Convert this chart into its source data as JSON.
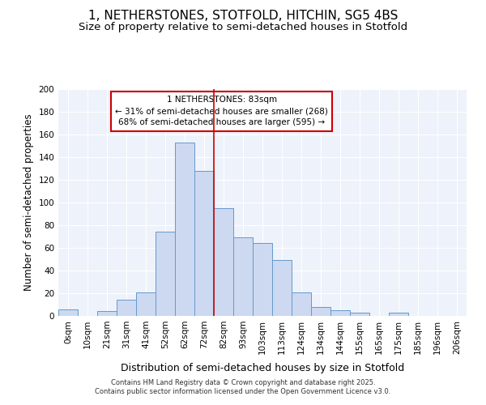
{
  "title1": "1, NETHERSTONES, STOTFOLD, HITCHIN, SG5 4BS",
  "title2": "Size of property relative to semi-detached houses in Stotfold",
  "xlabel": "Distribution of semi-detached houses by size in Stotfold",
  "ylabel": "Number of semi-detached properties",
  "categories": [
    "0sqm",
    "10sqm",
    "21sqm",
    "31sqm",
    "41sqm",
    "52sqm",
    "62sqm",
    "72sqm",
    "82sqm",
    "93sqm",
    "103sqm",
    "113sqm",
    "124sqm",
    "134sqm",
    "144sqm",
    "155sqm",
    "165sqm",
    "175sqm",
    "185sqm",
    "196sqm",
    "206sqm"
  ],
  "values": [
    6,
    0,
    4,
    14,
    21,
    74,
    153,
    128,
    95,
    69,
    64,
    49,
    21,
    8,
    5,
    3,
    0,
    3,
    0,
    0,
    0
  ],
  "bar_color": "#ccd9f0",
  "bar_edge_color": "#6699cc",
  "vline_x_index": 7.5,
  "vline_color": "#cc0000",
  "annotation_text": "1 NETHERSTONES: 83sqm\n← 31% of semi-detached houses are smaller (268)\n68% of semi-detached houses are larger (595) →",
  "ylim": [
    0,
    200
  ],
  "yticks": [
    0,
    20,
    40,
    60,
    80,
    100,
    120,
    140,
    160,
    180,
    200
  ],
  "footer": "Contains HM Land Registry data © Crown copyright and database right 2025.\nContains public sector information licensed under the Open Government Licence v3.0.",
  "bg_color": "#eef2fa",
  "title_fontsize": 11,
  "subtitle_fontsize": 9.5,
  "tick_fontsize": 7.5,
  "ylabel_fontsize": 8.5,
  "xlabel_fontsize": 9,
  "annotation_fontsize": 7.5,
  "footer_fontsize": 6
}
